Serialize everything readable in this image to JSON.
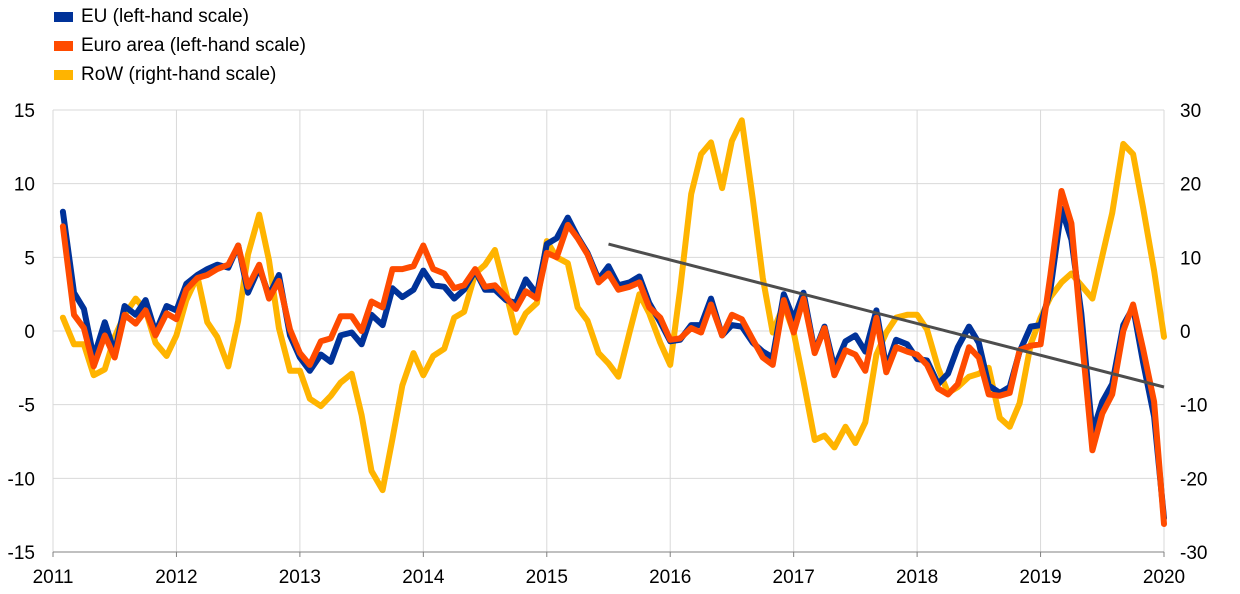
{
  "chart_data": {
    "type": "line",
    "title": "",
    "legend_position": "top-left",
    "grid": true,
    "x_ticks": [
      "2011",
      "2012",
      "2013",
      "2014",
      "2015",
      "2016",
      "2017",
      "2018",
      "2019",
      "2020"
    ],
    "y_left": {
      "ylim": [
        -15,
        15
      ],
      "ticks": [
        "15",
        "10",
        "5",
        "0",
        "-5",
        "-10",
        "-15"
      ]
    },
    "y_right": {
      "ylim": [
        -30,
        30
      ],
      "ticks": [
        "30",
        "20",
        "10",
        "0",
        "-10",
        "-20",
        "-30"
      ]
    },
    "series": [
      {
        "name": "EU (left-hand scale)",
        "axis": "left",
        "color": "#003299",
        "x": [
          2011.08,
          2011.17,
          2011.25,
          2011.33,
          2011.42,
          2011.5,
          2011.58,
          2011.67,
          2011.75,
          2011.83,
          2011.92,
          2012.0,
          2012.08,
          2012.17,
          2012.25,
          2012.33,
          2012.42,
          2012.5,
          2012.58,
          2012.67,
          2012.75,
          2012.83,
          2012.92,
          2013.0,
          2013.08,
          2013.17,
          2013.25,
          2013.33,
          2013.42,
          2013.5,
          2013.58,
          2013.67,
          2013.75,
          2013.83,
          2013.92,
          2014.0,
          2014.08,
          2014.17,
          2014.25,
          2014.33,
          2014.42,
          2014.5,
          2014.58,
          2014.67,
          2014.75,
          2014.83,
          2014.92,
          2015.0,
          2015.08,
          2015.17,
          2015.25,
          2015.33,
          2015.42,
          2015.5,
          2015.58,
          2015.67,
          2015.75,
          2015.83,
          2015.92,
          2016.0,
          2016.08,
          2016.17,
          2016.25,
          2016.33,
          2016.42,
          2016.5,
          2016.58,
          2016.67,
          2016.75,
          2016.83,
          2016.92,
          2017.0,
          2017.08,
          2017.17,
          2017.25,
          2017.33,
          2017.42,
          2017.5,
          2017.58,
          2017.67,
          2017.75,
          2017.83,
          2017.92,
          2018.0,
          2018.08,
          2018.17,
          2018.25,
          2018.33,
          2018.42,
          2018.5,
          2018.58,
          2018.67,
          2018.75,
          2018.83,
          2018.92,
          2019.0,
          2019.08,
          2019.17,
          2019.25,
          2019.33,
          2019.42,
          2019.5,
          2019.58,
          2019.67,
          2019.75,
          2019.83,
          2019.92,
          2020.0
        ],
        "values": [
          8.1,
          2.6,
          1.5,
          -1.8,
          0.6,
          -1.5,
          1.7,
          1.1,
          2.1,
          -0.1,
          1.7,
          1.4,
          3.2,
          3.8,
          4.2,
          4.5,
          4.3,
          5.8,
          2.6,
          4.3,
          2.4,
          3.8,
          -0.3,
          -1.8,
          -2.7,
          -1.6,
          -2.1,
          -0.3,
          -0.1,
          -0.9,
          1.1,
          0.4,
          2.9,
          2.3,
          2.8,
          4.1,
          3.1,
          3.0,
          2.2,
          2.8,
          4.1,
          2.8,
          2.8,
          2.1,
          1.9,
          3.5,
          2.5,
          5.9,
          6.3,
          7.7,
          6.4,
          5.3,
          3.5,
          4.4,
          3.1,
          3.3,
          3.7,
          1.9,
          0.6,
          -0.7,
          -0.6,
          0.4,
          0.4,
          2.2,
          -0.3,
          0.4,
          0.3,
          -0.8,
          -1.4,
          -1.8,
          2.5,
          0.8,
          2.6,
          -1.4,
          0.3,
          -2.5,
          -0.7,
          -0.3,
          -1.4,
          1.4,
          -2.5,
          -0.6,
          -0.9,
          -1.9,
          -2.0,
          -3.6,
          -2.9,
          -1.1,
          0.3,
          -0.8,
          -3.7,
          -4.2,
          -3.8,
          -1.4,
          0.3,
          0.4,
          2.8,
          8.3,
          6.2,
          1.2,
          -6.9,
          -4.8,
          -3.6,
          0.4,
          1.6,
          -2.1,
          -5.8,
          -12.7
        ]
      },
      {
        "name": "Euro area (left-hand scale)",
        "axis": "left",
        "color": "#ff4b00",
        "x": [
          2011.08,
          2011.17,
          2011.25,
          2011.33,
          2011.42,
          2011.5,
          2011.58,
          2011.67,
          2011.75,
          2011.83,
          2011.92,
          2012.0,
          2012.08,
          2012.17,
          2012.25,
          2012.33,
          2012.42,
          2012.5,
          2012.58,
          2012.67,
          2012.75,
          2012.83,
          2012.92,
          2013.0,
          2013.08,
          2013.17,
          2013.25,
          2013.33,
          2013.42,
          2013.5,
          2013.58,
          2013.67,
          2013.75,
          2013.83,
          2013.92,
          2014.0,
          2014.08,
          2014.17,
          2014.25,
          2014.33,
          2014.42,
          2014.5,
          2014.58,
          2014.67,
          2014.75,
          2014.83,
          2014.92,
          2015.0,
          2015.08,
          2015.17,
          2015.25,
          2015.33,
          2015.42,
          2015.5,
          2015.58,
          2015.67,
          2015.75,
          2015.83,
          2015.92,
          2016.0,
          2016.08,
          2016.17,
          2016.25,
          2016.33,
          2016.42,
          2016.5,
          2016.58,
          2016.67,
          2016.75,
          2016.83,
          2016.92,
          2017.0,
          2017.08,
          2017.17,
          2017.25,
          2017.33,
          2017.42,
          2017.5,
          2017.58,
          2017.67,
          2017.75,
          2017.83,
          2017.92,
          2018.0,
          2018.08,
          2018.17,
          2018.25,
          2018.33,
          2018.42,
          2018.5,
          2018.58,
          2018.67,
          2018.75,
          2018.83,
          2018.92,
          2019.0,
          2019.08,
          2019.17,
          2019.25,
          2019.33,
          2019.42,
          2019.5,
          2019.58,
          2019.67,
          2019.75,
          2019.83,
          2019.92,
          2020.0
        ],
        "values": [
          7.1,
          1.1,
          0.2,
          -2.4,
          -0.3,
          -1.8,
          1.1,
          0.5,
          1.4,
          -0.3,
          1.2,
          0.8,
          2.8,
          3.6,
          3.8,
          4.2,
          4.5,
          5.8,
          3.0,
          4.5,
          2.2,
          3.4,
          0.1,
          -1.5,
          -2.3,
          -0.7,
          -0.5,
          1.0,
          1.0,
          0.0,
          2.0,
          1.6,
          4.2,
          4.2,
          4.4,
          5.8,
          4.2,
          3.9,
          2.9,
          3.1,
          4.2,
          3.0,
          3.1,
          2.3,
          1.5,
          2.7,
          2.2,
          5.3,
          5.0,
          7.2,
          6.3,
          5.2,
          3.3,
          3.9,
          2.8,
          3.0,
          3.3,
          1.6,
          0.9,
          -0.6,
          -0.5,
          0.2,
          -0.1,
          1.8,
          -0.3,
          1.1,
          0.8,
          -0.6,
          -1.8,
          -2.3,
          2.1,
          -0.1,
          2.2,
          -1.5,
          0.2,
          -3.0,
          -1.3,
          -1.6,
          -2.7,
          0.9,
          -2.8,
          -1.1,
          -1.4,
          -1.6,
          -2.3,
          -3.9,
          -4.3,
          -3.6,
          -1.1,
          -1.8,
          -4.3,
          -4.4,
          -4.2,
          -1.3,
          -1.0,
          -0.9,
          3.8,
          9.5,
          7.3,
          -0.1,
          -8.1,
          -5.6,
          -4.3,
          0.0,
          1.8,
          -1.2,
          -4.8,
          -13.1
        ]
      },
      {
        "name": "RoW (right-hand scale)",
        "axis": "right",
        "color": "#ffb400",
        "x": [
          2011.08,
          2011.17,
          2011.25,
          2011.33,
          2011.42,
          2011.5,
          2011.58,
          2011.67,
          2011.75,
          2011.83,
          2011.92,
          2012.0,
          2012.08,
          2012.17,
          2012.25,
          2012.33,
          2012.42,
          2012.5,
          2012.58,
          2012.67,
          2012.75,
          2012.83,
          2012.92,
          2013.0,
          2013.08,
          2013.17,
          2013.25,
          2013.33,
          2013.42,
          2013.5,
          2013.58,
          2013.67,
          2013.75,
          2013.83,
          2013.92,
          2014.0,
          2014.08,
          2014.17,
          2014.25,
          2014.33,
          2014.42,
          2014.5,
          2014.58,
          2014.67,
          2014.75,
          2014.83,
          2014.92,
          2015.0,
          2015.08,
          2015.17,
          2015.25,
          2015.33,
          2015.42,
          2015.5,
          2015.58,
          2015.67,
          2015.75,
          2015.83,
          2015.92,
          2016.0,
          2016.08,
          2016.17,
          2016.25,
          2016.33,
          2016.42,
          2016.5,
          2016.58,
          2016.67,
          2016.75,
          2016.83,
          2016.92,
          2017.0,
          2017.08,
          2017.17,
          2017.25,
          2017.33,
          2017.42,
          2017.5,
          2017.58,
          2017.67,
          2017.75,
          2017.83,
          2017.92,
          2018.0,
          2018.08,
          2018.17,
          2018.25,
          2018.33,
          2018.42,
          2018.5,
          2018.58,
          2018.67,
          2018.75,
          2018.83,
          2018.92,
          2019.0,
          2019.08,
          2019.17,
          2019.25,
          2019.33,
          2019.42,
          2019.5,
          2019.58,
          2019.67,
          2019.75,
          2019.83,
          2019.92,
          2020.0
        ],
        "values": [
          1.8,
          -1.8,
          -1.8,
          -6,
          -5.2,
          -0.8,
          2.2,
          4.4,
          2.8,
          -1.6,
          -3.4,
          -0.6,
          4.2,
          7.4,
          1.2,
          -0.8,
          -4.8,
          1.4,
          10.4,
          15.8,
          9.6,
          0.4,
          -5.4,
          -5.4,
          -9.2,
          -10.2,
          -8.8,
          -7,
          -5.8,
          -11.4,
          -19,
          -21.6,
          -14.6,
          -7.4,
          -3,
          -6,
          -3.4,
          -2.4,
          1.8,
          2.6,
          7.8,
          9,
          11,
          5.2,
          -0.2,
          2.4,
          3.8,
          12.2,
          10,
          9.2,
          3.2,
          1.4,
          -3,
          -4.4,
          -6.2,
          -0.2,
          5,
          2.4,
          -1.6,
          -4.6,
          5.6,
          18.6,
          24,
          25.6,
          19.4,
          25.8,
          28.6,
          17.8,
          7.2,
          -0.2,
          3.6,
          -0.2,
          -6.8,
          -14.8,
          -14.2,
          -15.8,
          -13,
          -15.2,
          -12.4,
          -3.2,
          -0.2,
          1.8,
          2.2,
          2.2,
          0.2,
          -5,
          -8.4,
          -7.6,
          -6.2,
          -5.8,
          -5,
          -11.8,
          -13,
          -9.8,
          -1.8,
          1.8,
          4.6,
          6.6,
          7.8,
          6.2,
          4.4,
          10.2,
          16,
          25.4,
          24,
          16.8,
          8.2,
          -0.8
        ]
      }
    ],
    "trend_line": {
      "color": "#4d4d4d",
      "x": [
        2015.5,
        2020.0
      ],
      "values": [
        5.9,
        -3.8
      ]
    }
  }
}
